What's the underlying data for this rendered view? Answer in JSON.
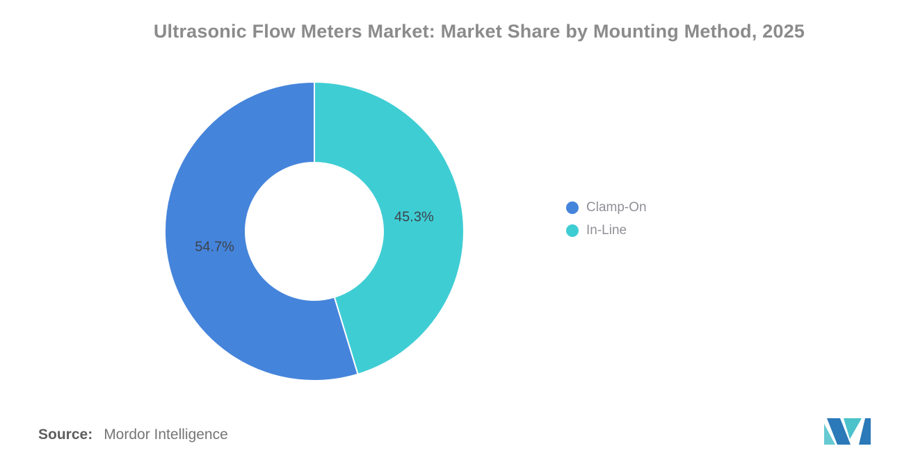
{
  "title": "Ultrasonic Flow Meters Market: Market Share by Mounting Method, 2025",
  "source": {
    "label": "Source:",
    "text": "Mordor Intelligence"
  },
  "chart_data": {
    "type": "pie",
    "subtype": "donut",
    "title": "Ultrasonic Flow Meters Market: Market Share by Mounting Method, 2025",
    "slices": [
      {
        "name": "Clamp-On",
        "value": 54.7,
        "display": "54.7%",
        "color": "#4584DB"
      },
      {
        "name": "In-Line",
        "value": 45.3,
        "display": "45.3%",
        "color": "#3FCDD4"
      }
    ],
    "legend_position": "right",
    "inner_radius_ratio": 0.46,
    "rotation_note": "split at 12 o'clock; Clamp-On occupies left half counterclockwise, In-Line occupies right half clockwise",
    "data_label_color": "#3D434B",
    "background": "#FFFFFF"
  },
  "logo": {
    "alt": "Mordor Intelligence logo",
    "colors": {
      "blue": "#2B79B8",
      "teal": "#4CC2CB",
      "teal_light": "#66CAD2"
    }
  }
}
